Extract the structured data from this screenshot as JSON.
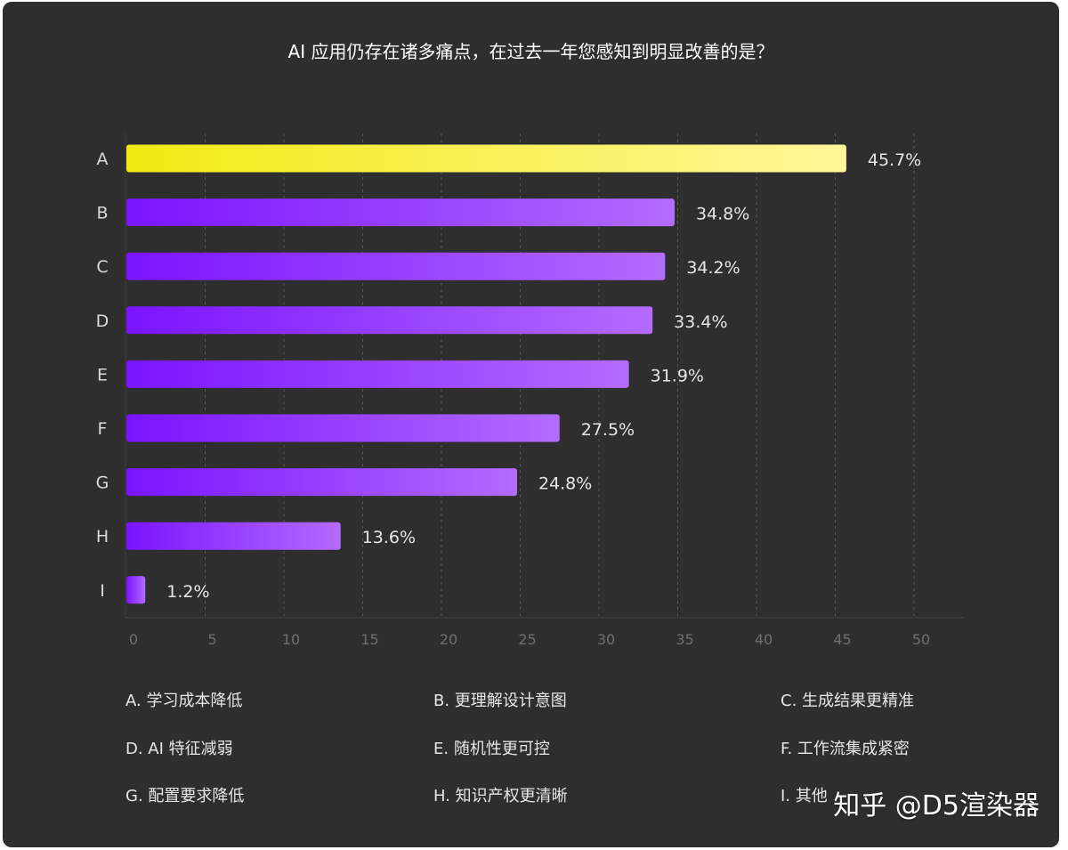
{
  "chart_data": {
    "type": "bar",
    "orientation": "horizontal",
    "title": "AI 应用仍存在诸多痛点，在过去一年您感知到明显改善的是？",
    "categories": [
      "A",
      "B",
      "C",
      "D",
      "E",
      "F",
      "G",
      "H",
      "I"
    ],
    "values": [
      45.7,
      34.8,
      34.2,
      33.4,
      31.9,
      27.5,
      24.8,
      13.6,
      1.2
    ],
    "value_labels": [
      "45.7%",
      "34.8%",
      "34.2%",
      "33.4%",
      "31.9%",
      "27.5%",
      "24.8%",
      "13.6%",
      "1.2%"
    ],
    "xlim": [
      0,
      50
    ],
    "x_ticks": [
      0,
      5,
      10,
      15,
      20,
      25,
      30,
      35,
      40,
      45,
      50
    ],
    "grid": "vertical dashed",
    "colors": {
      "highlight_start": "#f2ea12",
      "highlight_end": "#fff79a",
      "bar_start": "#7a14ff",
      "bar_end": "#b46bff",
      "background": "#2e2e2e"
    },
    "legend": [
      "A. 学习成本降低",
      "B. 更理解设计意图",
      "C. 生成结果更精准",
      "D.  AI 特征减弱",
      "E. 随机性更可控",
      "F. 工作流集成紧密",
      "G. 配置要求降低",
      "H. 知识产权更清晰",
      "I. 其他"
    ]
  },
  "watermark": "知乎 @D5渲染器"
}
